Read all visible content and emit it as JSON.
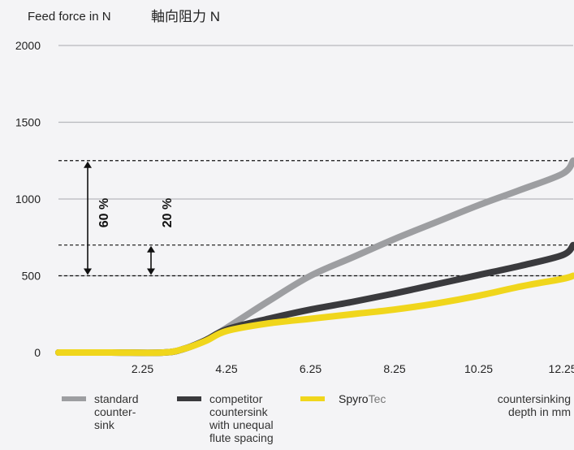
{
  "chart_data": {
    "type": "line",
    "title": "Feed force in N",
    "title_jp": "軸向阻力 N",
    "xlabel": [
      "countersinking",
      "depth in mm"
    ],
    "ylabel": "",
    "x_ticks": [
      "2.25",
      "4.25",
      "6.25",
      "8.25",
      "10.25",
      "12.25"
    ],
    "y_ticks": [
      "0",
      "500",
      "1000",
      "1500",
      "2000"
    ],
    "xlim": [
      0.25,
      12.5
    ],
    "ylim": [
      0,
      2000
    ],
    "grid": true,
    "reference_lines": [
      1250,
      700,
      500
    ],
    "annotations": [
      {
        "label": "60 %",
        "from": 500,
        "to": 1250
      },
      {
        "label": "20 %",
        "from": 500,
        "to": 700
      }
    ],
    "series": [
      {
        "name": [
          "standard",
          "counter-",
          "sink"
        ],
        "color": "#9d9ea1",
        "x": [
          0.25,
          1.5,
          2.75,
          3.25,
          3.75,
          4.25,
          5.25,
          6.25,
          7.25,
          8.25,
          9.25,
          10.25,
          11.25,
          12.25,
          12.5
        ],
        "y": [
          0,
          0,
          0,
          25,
          80,
          160,
          335,
          500,
          620,
          740,
          850,
          960,
          1060,
          1165,
          1250
        ]
      },
      {
        "name": [
          "competitor",
          "countersink",
          "with unequal",
          "flute spacing"
        ],
        "color": "#3a3a3d",
        "x": [
          0.25,
          1.5,
          2.75,
          3.25,
          3.75,
          4.25,
          5.25,
          6.25,
          7.25,
          8.25,
          9.25,
          10.25,
          11.25,
          12.25,
          12.5
        ],
        "y": [
          0,
          0,
          0,
          25,
          80,
          150,
          220,
          280,
          330,
          385,
          445,
          505,
          565,
          635,
          700
        ]
      },
      {
        "name": [
          "Spyro",
          "Tec"
        ],
        "color": "#f0d61c",
        "x": [
          0.25,
          1.5,
          2.75,
          3.25,
          3.75,
          4.25,
          5.25,
          6.25,
          7.25,
          8.25,
          9.25,
          10.25,
          11.25,
          12.25,
          12.5
        ],
        "y": [
          0,
          0,
          0,
          25,
          75,
          140,
          190,
          220,
          250,
          280,
          320,
          370,
          430,
          480,
          500
        ]
      }
    ]
  }
}
